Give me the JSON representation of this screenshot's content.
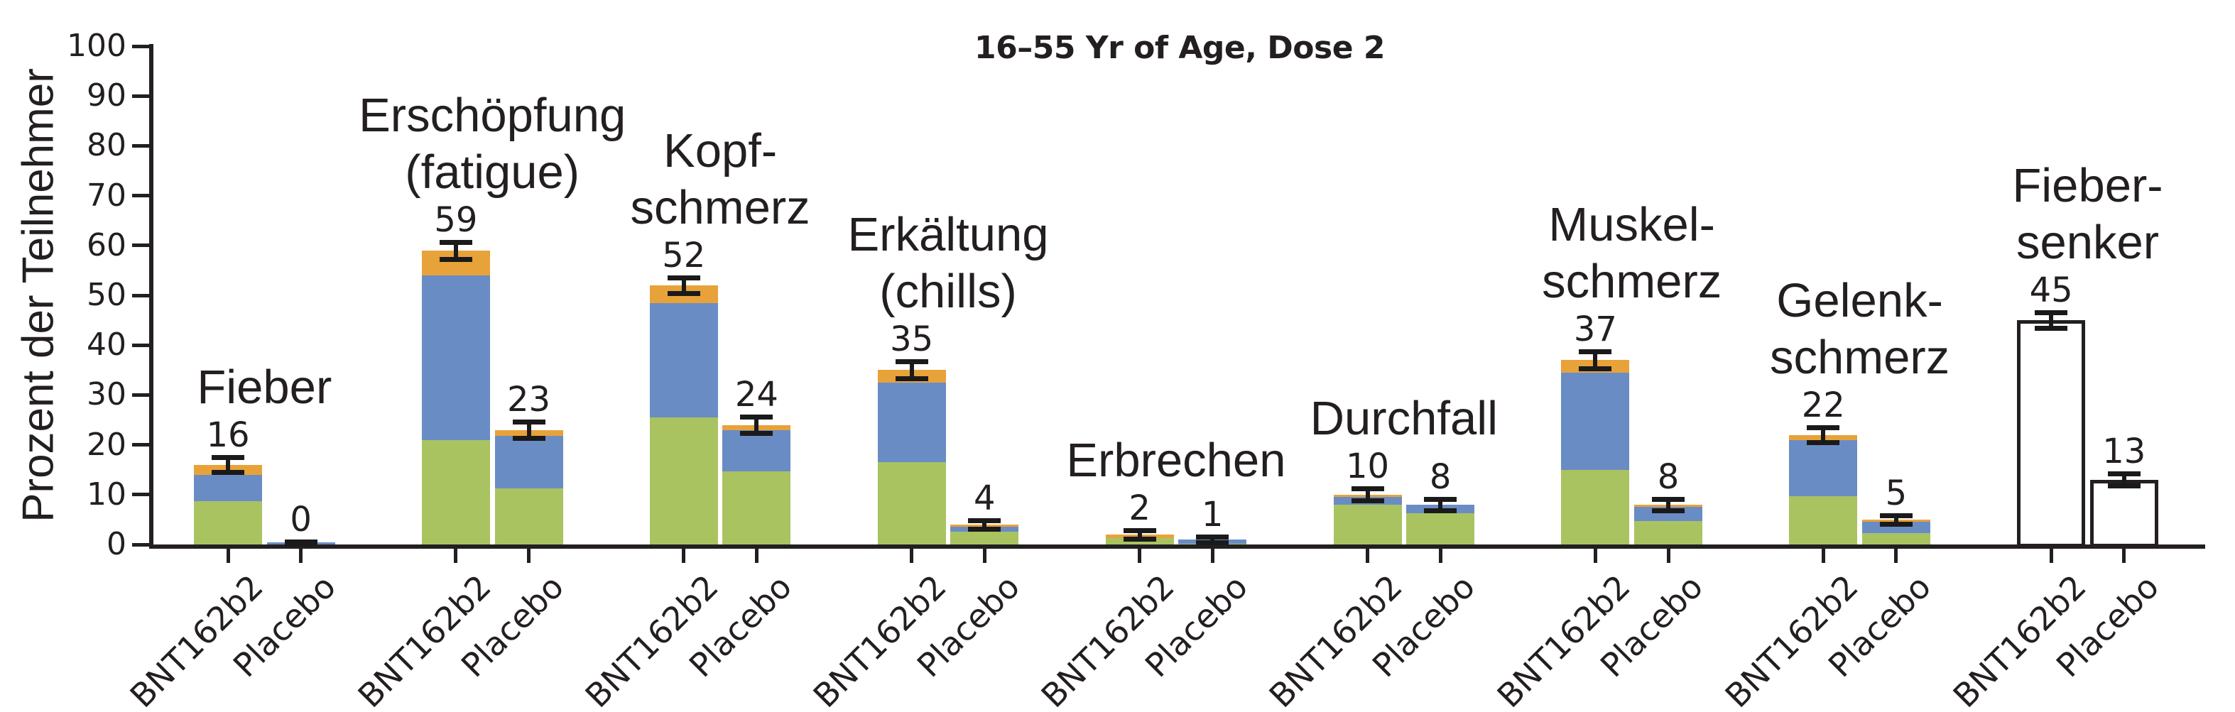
{
  "title": "16–55 Yr of Age, Dose 2",
  "y_axis": {
    "label": "Prozent der Teilnehmer",
    "min": 0,
    "max": 100,
    "step": 10,
    "ticks": [
      "0",
      "10",
      "20",
      "30",
      "40",
      "50",
      "60",
      "70",
      "80",
      "90",
      "100"
    ]
  },
  "x_arm_labels": [
    "BNT162b2",
    "Placebo"
  ],
  "colors": {
    "mild": "#a9c361",
    "moderate": "#6a8cc4",
    "severe": "#e8a23a",
    "axis": "#231f20",
    "error_bar": "#1a1a1a",
    "outline_bar_fill": "#ffffff",
    "text": "#231f20"
  },
  "severity_order": [
    "mild",
    "moderate",
    "severe"
  ],
  "chart_data": {
    "type": "bar",
    "stacked": true,
    "unit": "percent of participants",
    "title": "16–55 Yr of Age, Dose 2",
    "ylabel": "Prozent der Teilnehmer",
    "ylim": [
      0,
      100
    ],
    "grid": false,
    "legend": "none visible",
    "groups": [
      {
        "label": "Fieber",
        "label_lines": [
          "Fieber"
        ],
        "bars": [
          {
            "arm": "BNT162b2",
            "total": 16,
            "label": "16",
            "error": 1.5,
            "style": "stacked",
            "segments": {
              "mild": 8.7,
              "moderate": 5.2,
              "severe": 2.1
            }
          },
          {
            "arm": "Placebo",
            "total": 0,
            "label": "0",
            "error": 0.6,
            "style": "stacked",
            "segments": {
              "mild": 0,
              "moderate": 0.4,
              "severe": 0
            }
          }
        ]
      },
      {
        "label": "Erschöpfung (fatigue)",
        "label_lines": [
          "Erschöpfung",
          "(fatigue)"
        ],
        "bars": [
          {
            "arm": "BNT162b2",
            "total": 59,
            "label": "59",
            "error": 1.7,
            "style": "stacked",
            "segments": {
              "mild": 21,
              "moderate": 33,
              "severe": 5
            }
          },
          {
            "arm": "Placebo",
            "total": 23,
            "label": "23",
            "error": 1.7,
            "style": "stacked",
            "segments": {
              "mild": 11.3,
              "moderate": 10.5,
              "severe": 1.2
            }
          }
        ]
      },
      {
        "label": "Kopfschmerz",
        "label_lines": [
          "Kopf-",
          "schmerz"
        ],
        "bars": [
          {
            "arm": "BNT162b2",
            "total": 52,
            "label": "52",
            "error": 1.6,
            "style": "stacked",
            "segments": {
              "mild": 25.5,
              "moderate": 23,
              "severe": 3.5
            }
          },
          {
            "arm": "Placebo",
            "total": 24,
            "label": "24",
            "error": 1.7,
            "style": "stacked",
            "segments": {
              "mild": 14.7,
              "moderate": 8.2,
              "severe": 1.1
            }
          }
        ]
      },
      {
        "label": "Erkältung (chills)",
        "label_lines": [
          "Erkältung",
          "(chills)"
        ],
        "bars": [
          {
            "arm": "BNT162b2",
            "total": 35,
            "label": "35",
            "error": 1.7,
            "style": "stacked",
            "segments": {
              "mild": 16.5,
              "moderate": 16,
              "severe": 2.5
            }
          },
          {
            "arm": "Placebo",
            "total": 4,
            "label": "4",
            "error": 0.8,
            "style": "stacked",
            "segments": {
              "mild": 2.6,
              "moderate": 1,
              "severe": 0.4
            }
          }
        ]
      },
      {
        "label": "Erbrechen",
        "label_lines": [
          "Erbrechen"
        ],
        "bars": [
          {
            "arm": "BNT162b2",
            "total": 2,
            "label": "2",
            "error": 0.8,
            "style": "stacked",
            "segments": {
              "mild": 1.3,
              "moderate": 0,
              "severe": 0.7
            }
          },
          {
            "arm": "Placebo",
            "total": 1,
            "label": "1",
            "error": 0.6,
            "style": "stacked",
            "segments": {
              "mild": 0.2,
              "moderate": 0.8,
              "severe": 0
            }
          }
        ]
      },
      {
        "label": "Durchfall",
        "label_lines": [
          "Durchfall"
        ],
        "bars": [
          {
            "arm": "BNT162b2",
            "total": 10,
            "label": "10",
            "error": 1.2,
            "style": "stacked",
            "segments": {
              "mild": 8,
              "moderate": 1.5,
              "severe": 0.5
            }
          },
          {
            "arm": "Placebo",
            "total": 8,
            "label": "8",
            "error": 1.1,
            "style": "stacked",
            "segments": {
              "mild": 6.3,
              "moderate": 1.7,
              "severe": 0
            }
          }
        ]
      },
      {
        "label": "Muskelschmerz",
        "label_lines": [
          "Muskel-",
          "schmerz"
        ],
        "bars": [
          {
            "arm": "BNT162b2",
            "total": 37,
            "label": "37",
            "error": 1.7,
            "style": "stacked",
            "segments": {
              "mild": 15,
              "moderate": 19.5,
              "severe": 2.5
            }
          },
          {
            "arm": "Placebo",
            "total": 8,
            "label": "8",
            "error": 1.1,
            "style": "stacked",
            "segments": {
              "mild": 4.7,
              "moderate": 2.8,
              "severe": 0.5
            }
          }
        ]
      },
      {
        "label": "Gelenkschmerz",
        "label_lines": [
          "Gelenk-",
          "schmerz"
        ],
        "bars": [
          {
            "arm": "BNT162b2",
            "total": 22,
            "label": "22",
            "error": 1.5,
            "style": "stacked",
            "segments": {
              "mild": 9.7,
              "moderate": 11.3,
              "severe": 1
            }
          },
          {
            "arm": "Placebo",
            "total": 5,
            "label": "5",
            "error": 0.9,
            "style": "stacked",
            "segments": {
              "mild": 2.3,
              "moderate": 2.2,
              "severe": 0.5
            }
          }
        ]
      },
      {
        "label": "Fiebersenker",
        "label_lines": [
          "Fieber-",
          "senker"
        ],
        "bars": [
          {
            "arm": "BNT162b2",
            "total": 45,
            "label": "45",
            "error": 1.6,
            "style": "outline",
            "segments": {}
          },
          {
            "arm": "Placebo",
            "total": 13,
            "label": "13",
            "error": 1.2,
            "style": "outline",
            "segments": {}
          }
        ]
      }
    ]
  }
}
